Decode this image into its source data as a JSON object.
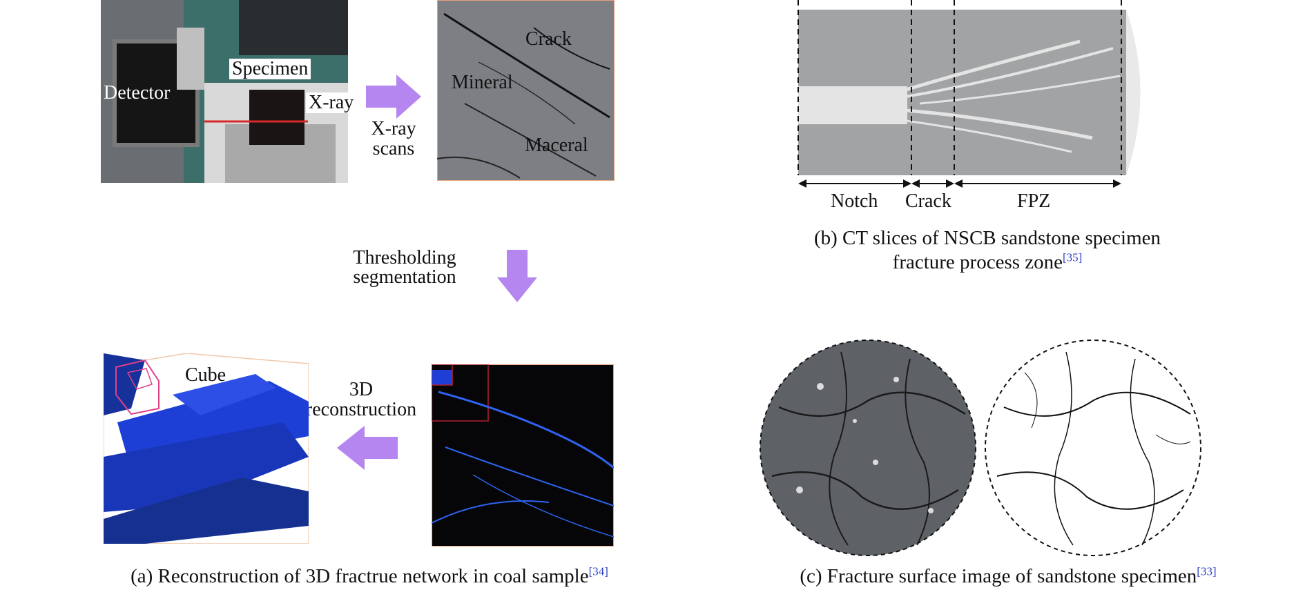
{
  "panel_a": {
    "photo_labels": {
      "detector": "Detector",
      "specimen": "Specimen",
      "xray": "X-ray"
    },
    "arrow1_label": [
      "X-ray",
      "scans"
    ],
    "ct_labels": {
      "crack": "Crack",
      "mineral": "Mineral",
      "maceral": "Maceral"
    },
    "arrow2_label": [
      "Thresholding",
      "segmentation"
    ],
    "arrow3_label": [
      "3D",
      "reconstruction"
    ],
    "cube_label": "Cube",
    "caption": "(a) Reconstruction of 3D fractrue network in coal sample",
    "caption_ref": "[34]"
  },
  "panel_b": {
    "zones": [
      "Notch",
      "Crack",
      "FPZ"
    ],
    "caption_line1": "(b) CT slices of NSCB sandstone specimen",
    "caption_line2": "fracture process zone",
    "caption_ref": "[35]"
  },
  "panel_c": {
    "caption": "(c) Fracture surface image of sandstone specimen",
    "caption_ref": "[33]"
  },
  "colors": {
    "arrow": "#b586ef",
    "ref": "#2a3fc4",
    "fracture_blue": "#1e3fd6",
    "cube_frame": "#e0408a"
  }
}
